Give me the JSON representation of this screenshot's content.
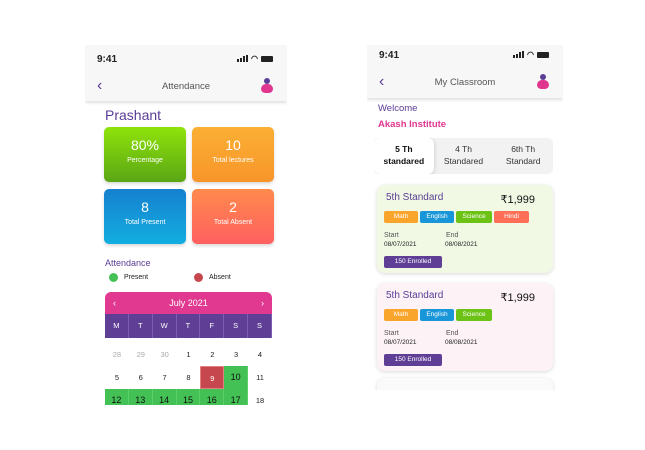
{
  "status": {
    "time": "9:41"
  },
  "attendance_screen": {
    "title": "Attendance",
    "student": "Prashant",
    "stats": [
      {
        "value": "80%",
        "label": "Percentage",
        "color": "#6cc316"
      },
      {
        "value": "10",
        "label": "Total lectures",
        "color": "#f9a42b"
      },
      {
        "value": "8",
        "label": "Total Present",
        "color": "#1996d8"
      },
      {
        "value": "2",
        "label": "Total Absent",
        "color": "#ff6f57"
      }
    ],
    "section": "Attendance",
    "legend": {
      "present": "Present",
      "absent": "Absent",
      "present_color": "#44c155",
      "absent_color": "#c6474e"
    },
    "calendar": {
      "month": "July 2021",
      "weekdays": [
        "M",
        "T",
        "W",
        "T",
        "F",
        "S",
        "S"
      ],
      "rows": [
        [
          {
            "d": "28",
            "s": "o"
          },
          {
            "d": "29",
            "s": "o"
          },
          {
            "d": "30",
            "s": "o"
          },
          {
            "d": "1",
            "s": ""
          },
          {
            "d": "2",
            "s": ""
          },
          {
            "d": "3",
            "s": ""
          },
          {
            "d": "4",
            "s": ""
          }
        ],
        [
          {
            "d": "5",
            "s": ""
          },
          {
            "d": "6",
            "s": ""
          },
          {
            "d": "7",
            "s": ""
          },
          {
            "d": "8",
            "s": ""
          },
          {
            "d": "9",
            "s": "a"
          },
          {
            "d": "10",
            "s": "p"
          },
          {
            "d": "11",
            "s": ""
          }
        ],
        [
          {
            "d": "12",
            "s": "p"
          },
          {
            "d": "13",
            "s": "p"
          },
          {
            "d": "14",
            "s": "p"
          },
          {
            "d": "15",
            "s": "p"
          },
          {
            "d": "16",
            "s": "p"
          },
          {
            "d": "17",
            "s": "p"
          },
          {
            "d": "18",
            "s": ""
          }
        ]
      ]
    }
  },
  "classroom_screen": {
    "title": "My Classroom",
    "welcome": "Welcome",
    "institute": "Akash Institute",
    "tabs": [
      {
        "l1": "5 Th",
        "l2": "standared"
      },
      {
        "l1": "4 Th",
        "l2": "Standared"
      },
      {
        "l1": "6th Th",
        "l2": "Standard"
      }
    ],
    "start_label": "Start",
    "end_label": "End",
    "cards": [
      {
        "name": "5th Standard",
        "price": "₹1,999",
        "bg": "#f1f9e4",
        "subjects": [
          {
            "t": "Math",
            "c": "#f9a42b"
          },
          {
            "t": "English",
            "c": "#1996d8"
          },
          {
            "t": "Science",
            "c": "#6cc316"
          },
          {
            "t": "Hindi",
            "c": "#ff6f57"
          }
        ],
        "start": "08/07/2021",
        "end": "08/08/2021",
        "enrolled": "150 Enrolled"
      },
      {
        "name": "5th Standard",
        "price": "₹1,999",
        "bg": "#fdf2f5",
        "subjects": [
          {
            "t": "Math",
            "c": "#f9a42b"
          },
          {
            "t": "English",
            "c": "#1996d8"
          },
          {
            "t": "Science",
            "c": "#6cc316"
          }
        ],
        "start": "08/07/2021",
        "end": "08/08/2021",
        "enrolled": "150 Enrolled"
      }
    ]
  }
}
